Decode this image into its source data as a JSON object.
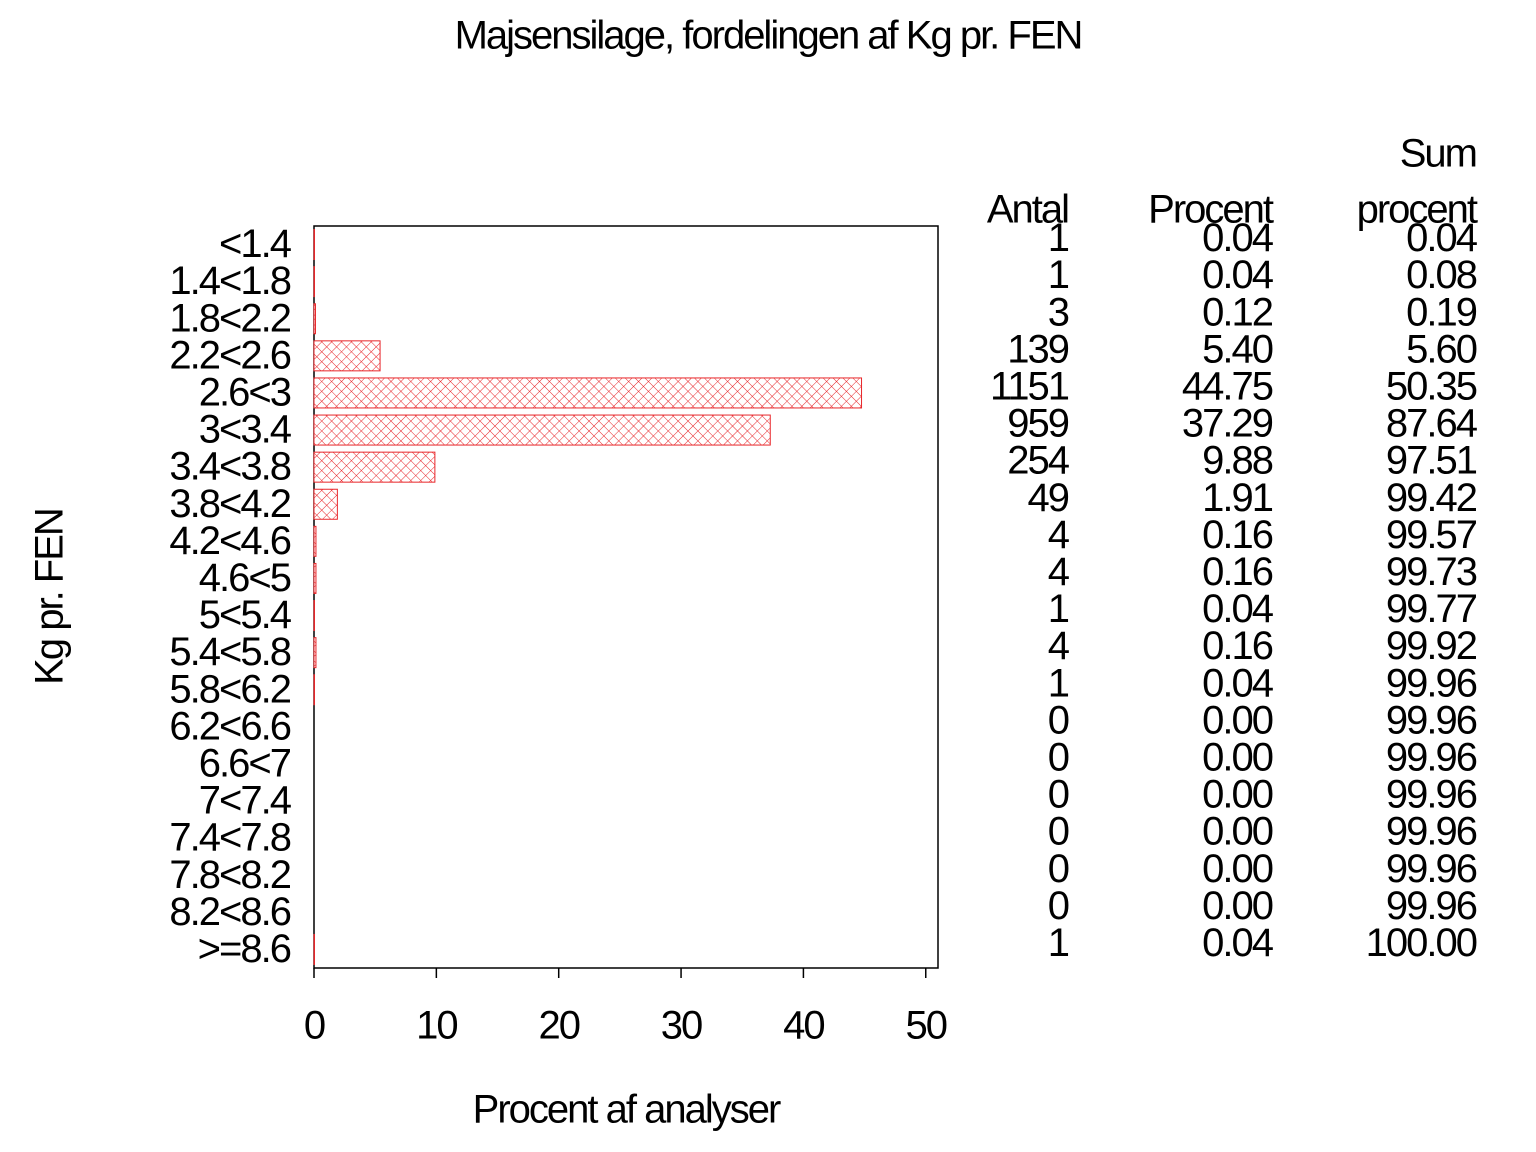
{
  "chart_data": {
    "type": "hbar",
    "title": "Majsensilage, fordelingen af Kg pr. FEN",
    "x_label": "Procent af analyser",
    "y_label": "Kg pr. FEN",
    "categories": [
      "<1.4",
      "1.4<1.8",
      "1.8<2.2",
      "2.2<2.6",
      "2.6<3",
      "3<3.4",
      "3.4<3.8",
      "3.8<4.2",
      "4.2<4.6",
      "4.6<5",
      "5<5.4",
      "5.4<5.8",
      "5.8<6.2",
      "6.2<6.6",
      "6.6<7",
      "7<7.4",
      "7.4<7.8",
      "7.8<8.2",
      "8.2<8.6",
      ">=8.6"
    ],
    "values": [
      0.04,
      0.04,
      0.12,
      5.4,
      44.75,
      37.29,
      9.88,
      1.91,
      0.16,
      0.16,
      0.04,
      0.16,
      0.04,
      0,
      0,
      0,
      0,
      0,
      0,
      0.04
    ],
    "value_labels": [
      "0.04",
      "0.04",
      "0.12",
      "5.40",
      "44.75",
      "37.29",
      "9.88",
      "1.91",
      "0.16",
      "0.16",
      "0.04",
      "0.16",
      "0.04",
      "0.00",
      "0.00",
      "0.00",
      "0.00",
      "0.00",
      "0.00",
      "0.04"
    ],
    "color": "#e8262a",
    "xlim": [
      0,
      51
    ],
    "xticks": [
      0,
      10,
      20,
      30,
      40,
      50
    ],
    "table": {
      "headers": {
        "count": "Antal",
        "percent": "Procent",
        "cumulative": [
          "Sum",
          "procent"
        ]
      },
      "count": [
        1,
        1,
        3,
        139,
        1151,
        959,
        254,
        49,
        4,
        4,
        1,
        4,
        1,
        0,
        0,
        0,
        0,
        0,
        0,
        1
      ],
      "cumulative": [
        "0.04",
        "0.08",
        "0.19",
        "5.60",
        "50.35",
        "87.64",
        "97.51",
        "99.42",
        "99.57",
        "99.73",
        "99.77",
        "99.92",
        "99.96",
        "99.96",
        "99.96",
        "99.96",
        "99.96",
        "99.96",
        "99.96",
        "100.00"
      ]
    }
  }
}
